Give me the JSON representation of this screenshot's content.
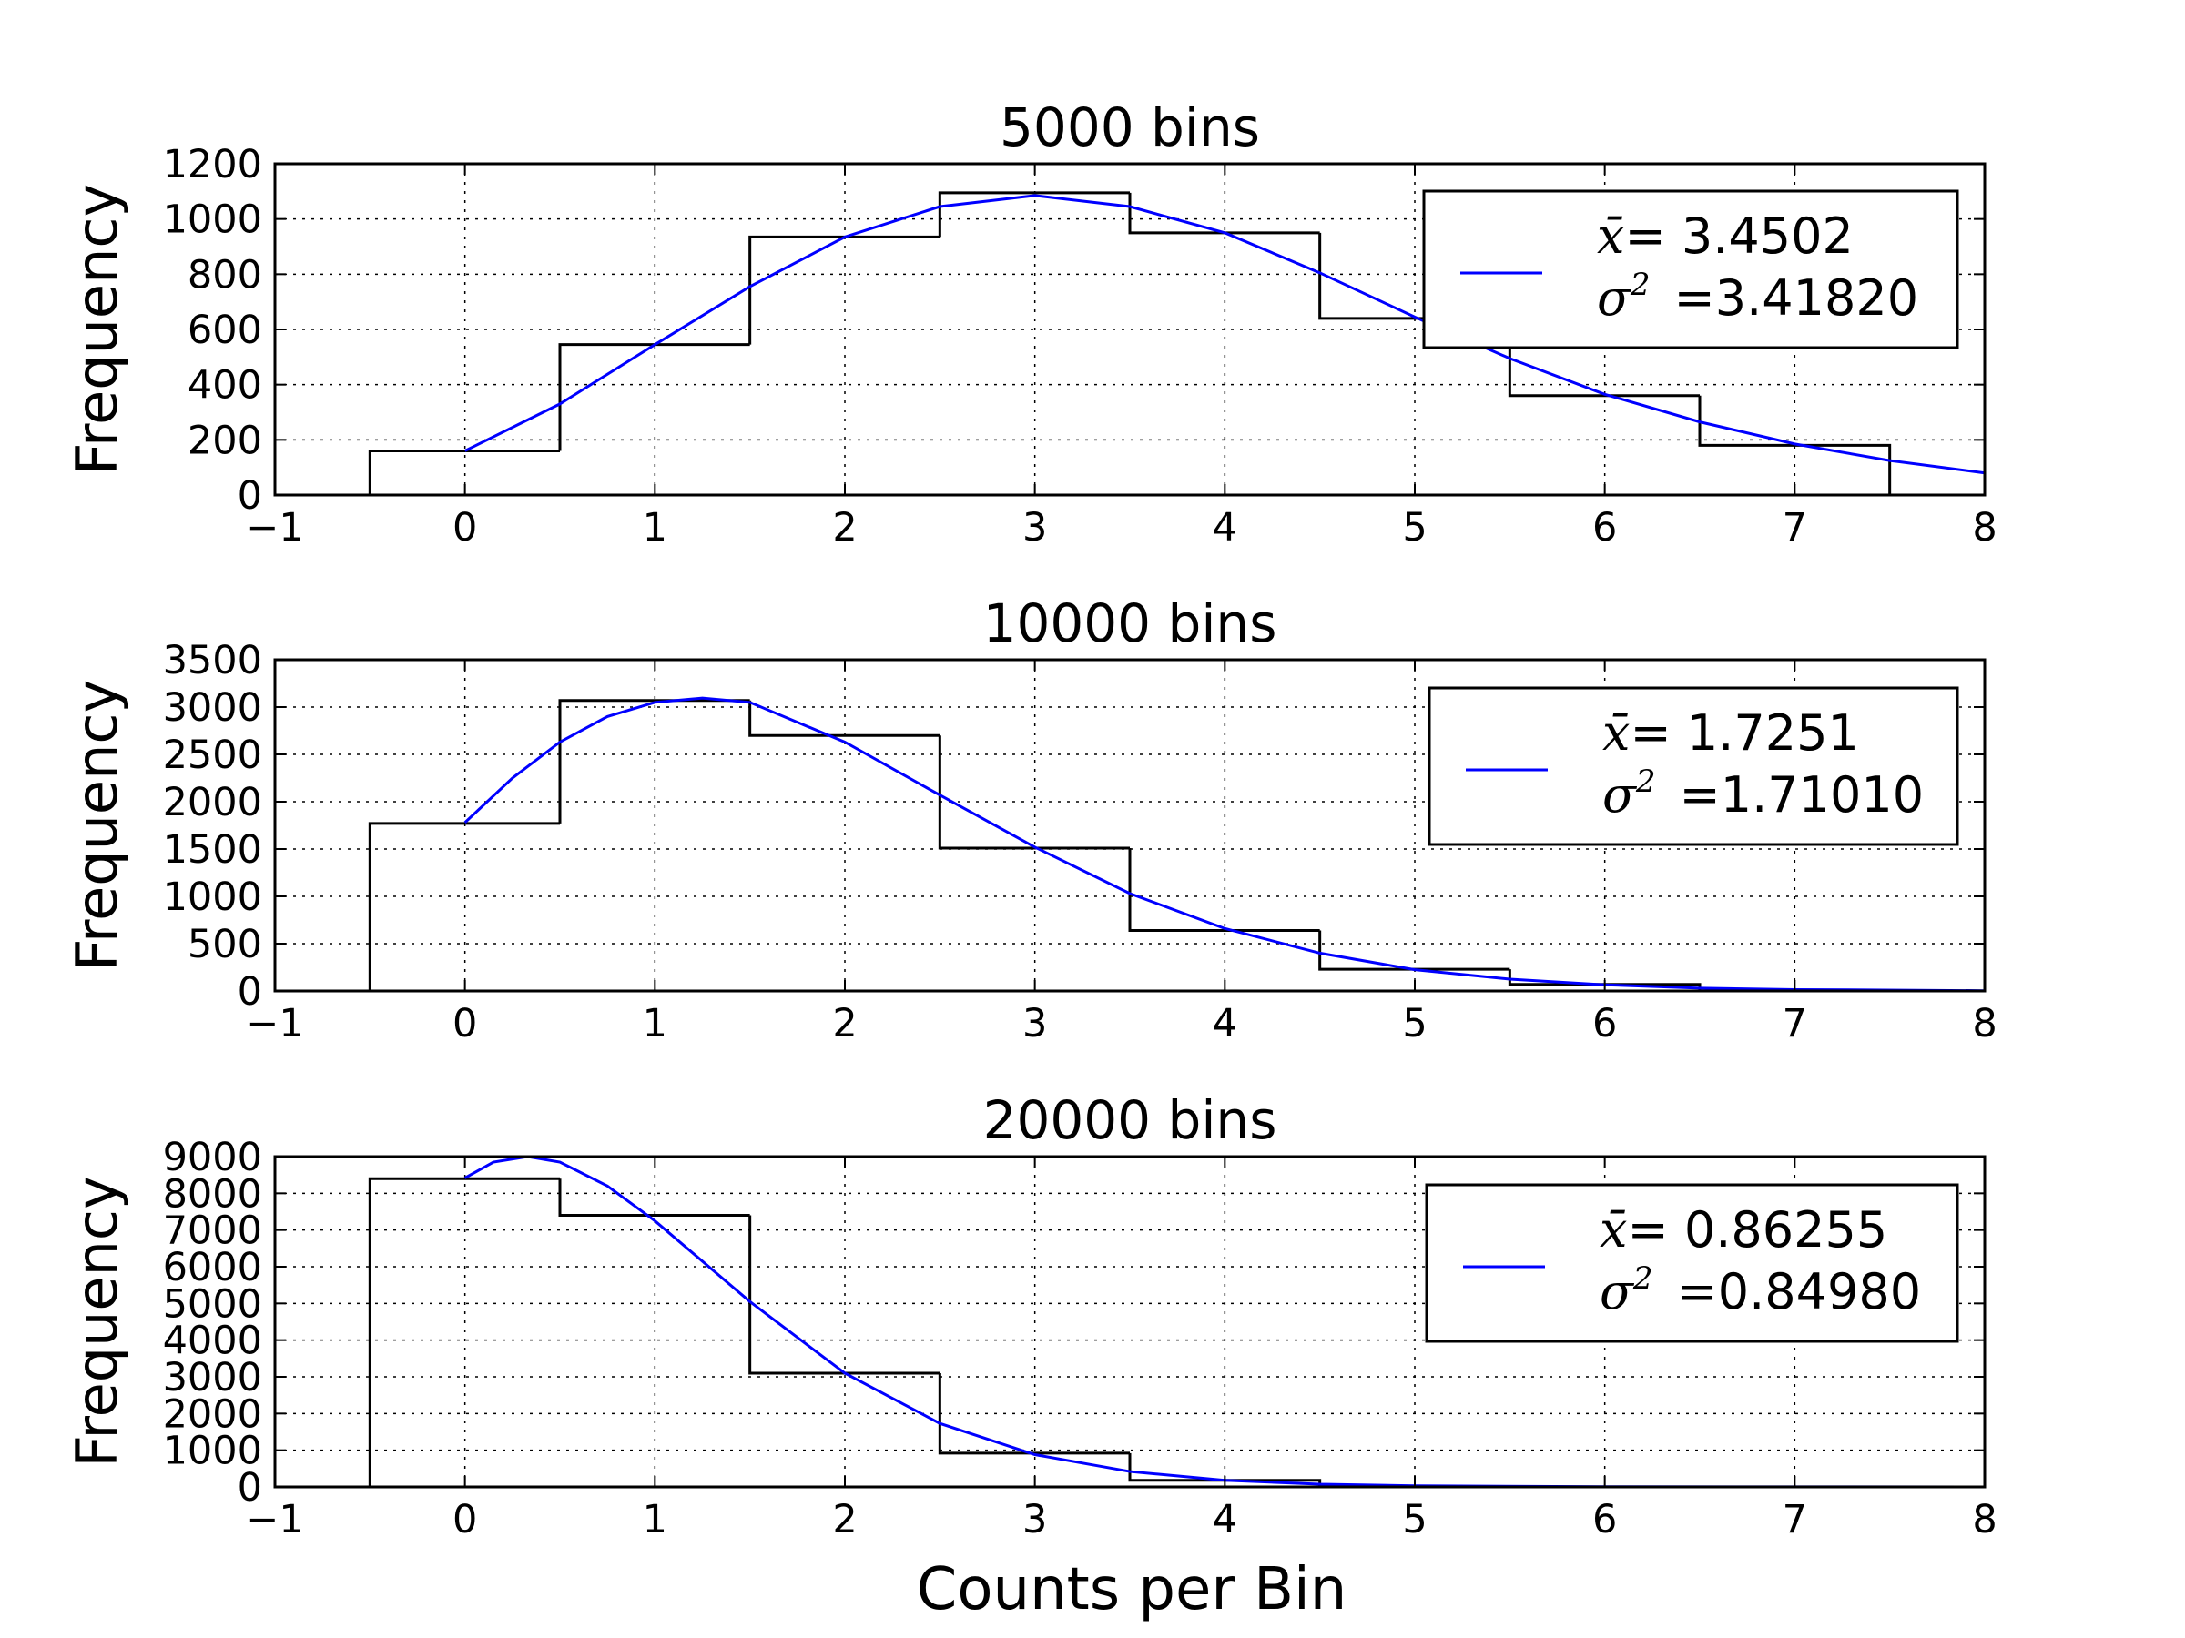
{
  "chart_data": [
    {
      "type": "histogram",
      "title": "5000 bins",
      "ylabel": "Frequency",
      "xlabel": "",
      "xlim": [
        -1,
        8
      ],
      "ylim": [
        0,
        1200
      ],
      "xticks": [
        "−1",
        "0",
        "1",
        "2",
        "3",
        "4",
        "5",
        "6",
        "7",
        "8"
      ],
      "yticks": [
        "0",
        "200",
        "400",
        "600",
        "800",
        "1000",
        "1200"
      ],
      "grid": true,
      "legend_position": "upper right",
      "bins": [
        {
          "x": 0,
          "value": 160
        },
        {
          "x": 1,
          "value": 545
        },
        {
          "x": 2,
          "value": 935
        },
        {
          "x": 3,
          "value": 1095
        },
        {
          "x": 4,
          "value": 950
        },
        {
          "x": 5,
          "value": 640
        },
        {
          "x": 6,
          "value": 360
        },
        {
          "x": 7,
          "value": 180
        }
      ],
      "fit": {
        "mean": 3.4502,
        "curve_points": [
          [
            0,
            160
          ],
          [
            0.5,
            330
          ],
          [
            1,
            545
          ],
          [
            1.5,
            755
          ],
          [
            2,
            935
          ],
          [
            2.5,
            1045
          ],
          [
            3,
            1085
          ],
          [
            3.5,
            1045
          ],
          [
            4,
            950
          ],
          [
            4.5,
            805
          ],
          [
            5,
            645
          ],
          [
            5.5,
            495
          ],
          [
            6,
            365
          ],
          [
            6.5,
            265
          ],
          [
            7,
            185
          ],
          [
            7.5,
            125
          ],
          [
            8,
            80
          ]
        ]
      },
      "legend": {
        "mean_symbol": "x̄",
        "mean_text": "= 3.4502",
        "var_symbol": "σ",
        "var_exp": "2",
        "var_text": "=3.41820"
      }
    },
    {
      "type": "histogram",
      "title": "10000 bins",
      "ylabel": "Frequency",
      "xlabel": "",
      "xlim": [
        -1,
        8
      ],
      "ylim": [
        0,
        3500
      ],
      "xticks": [
        "−1",
        "0",
        "1",
        "2",
        "3",
        "4",
        "5",
        "6",
        "7",
        "8"
      ],
      "yticks": [
        "0",
        "500",
        "1000",
        "1500",
        "2000",
        "2500",
        "3000",
        "3500"
      ],
      "grid": true,
      "legend_position": "upper right",
      "bins": [
        {
          "x": 0,
          "value": 1770
        },
        {
          "x": 1,
          "value": 3070
        },
        {
          "x": 2,
          "value": 2700
        },
        {
          "x": 3,
          "value": 1510
        },
        {
          "x": 4,
          "value": 640
        },
        {
          "x": 5,
          "value": 230
        },
        {
          "x": 6,
          "value": 70
        }
      ],
      "fit": {
        "mean": 1.7251,
        "curve_points": [
          [
            0,
            1780
          ],
          [
            0.25,
            2250
          ],
          [
            0.5,
            2630
          ],
          [
            0.75,
            2900
          ],
          [
            1,
            3050
          ],
          [
            1.25,
            3095
          ],
          [
            1.5,
            3050
          ],
          [
            2,
            2630
          ],
          [
            2.5,
            2070
          ],
          [
            3,
            1520
          ],
          [
            3.5,
            1030
          ],
          [
            4,
            660
          ],
          [
            4.5,
            400
          ],
          [
            5,
            225
          ],
          [
            5.5,
            125
          ],
          [
            6,
            65
          ],
          [
            6.5,
            30
          ],
          [
            7,
            15
          ],
          [
            8,
            3
          ]
        ]
      },
      "legend": {
        "mean_symbol": "x̄",
        "mean_text": "= 1.7251",
        "var_symbol": "σ",
        "var_exp": "2",
        "var_text": "=1.71010"
      }
    },
    {
      "type": "histogram",
      "title": "20000 bins",
      "ylabel": "Frequency",
      "xlabel": "Counts per Bin",
      "xlim": [
        -1,
        8
      ],
      "ylim": [
        0,
        9000
      ],
      "xticks": [
        "−1",
        "0",
        "1",
        "2",
        "3",
        "4",
        "5",
        "6",
        "7",
        "8"
      ],
      "yticks": [
        "0",
        "1000",
        "2000",
        "3000",
        "4000",
        "5000",
        "6000",
        "7000",
        "8000",
        "9000"
      ],
      "grid": true,
      "legend_position": "upper right",
      "bins": [
        {
          "x": 0,
          "value": 8400
        },
        {
          "x": 1,
          "value": 7400
        },
        {
          "x": 2,
          "value": 3100
        },
        {
          "x": 3,
          "value": 920
        },
        {
          "x": 4,
          "value": 180
        }
      ],
      "fit": {
        "mean": 0.86255,
        "curve_points": [
          [
            0,
            8420
          ],
          [
            0.15,
            8850
          ],
          [
            0.33,
            9000
          ],
          [
            0.5,
            8850
          ],
          [
            0.75,
            8200
          ],
          [
            1,
            7250
          ],
          [
            1.5,
            5050
          ],
          [
            2,
            3100
          ],
          [
            2.5,
            1730
          ],
          [
            3,
            880
          ],
          [
            3.5,
            420
          ],
          [
            4,
            180
          ],
          [
            4.5,
            75
          ],
          [
            5,
            30
          ],
          [
            6,
            5
          ],
          [
            8,
            0
          ]
        ]
      },
      "legend": {
        "mean_symbol": "x̄",
        "mean_text": "= 0.86255",
        "var_symbol": "σ",
        "var_exp": "2",
        "var_text": "=0.84980"
      }
    }
  ],
  "colors": {
    "fit_line": "#0000ff",
    "histogram": "#000000",
    "grid": "#000000",
    "background": "#ffffff"
  }
}
